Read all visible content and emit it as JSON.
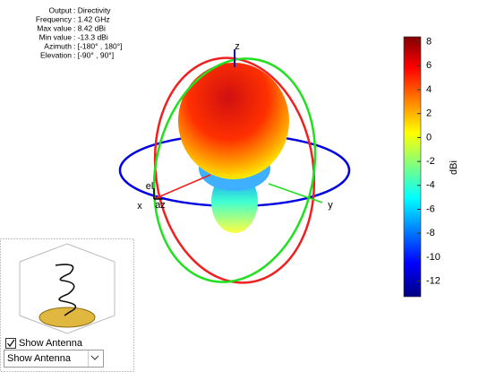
{
  "info": {
    "rows": [
      {
        "label": "Output",
        "value": ": Directivity"
      },
      {
        "label": "Frequency",
        "value": ": 1.42 GHz"
      },
      {
        "label": "Max value",
        "value": ": 8.42 dBi"
      },
      {
        "label": "Min value",
        "value": ": -13.3 dBi"
      },
      {
        "label": "Azimuth",
        "value": ": [-180° , 180°]"
      },
      {
        "label": "Elevation",
        "value": ": [-90° , 90°]"
      }
    ]
  },
  "axes": {
    "x": "x",
    "y": "y",
    "z": "z",
    "el": "el",
    "az": "az"
  },
  "colorbar": {
    "label": "dBi",
    "lim": [
      -13.3,
      8.42
    ],
    "ticks": [
      8,
      6,
      4,
      2,
      0,
      -2,
      -4,
      -6,
      -8,
      -10,
      -12
    ]
  },
  "controls": {
    "checkbox": "Show Antenna",
    "dropdown": "Show Antenna"
  }
}
